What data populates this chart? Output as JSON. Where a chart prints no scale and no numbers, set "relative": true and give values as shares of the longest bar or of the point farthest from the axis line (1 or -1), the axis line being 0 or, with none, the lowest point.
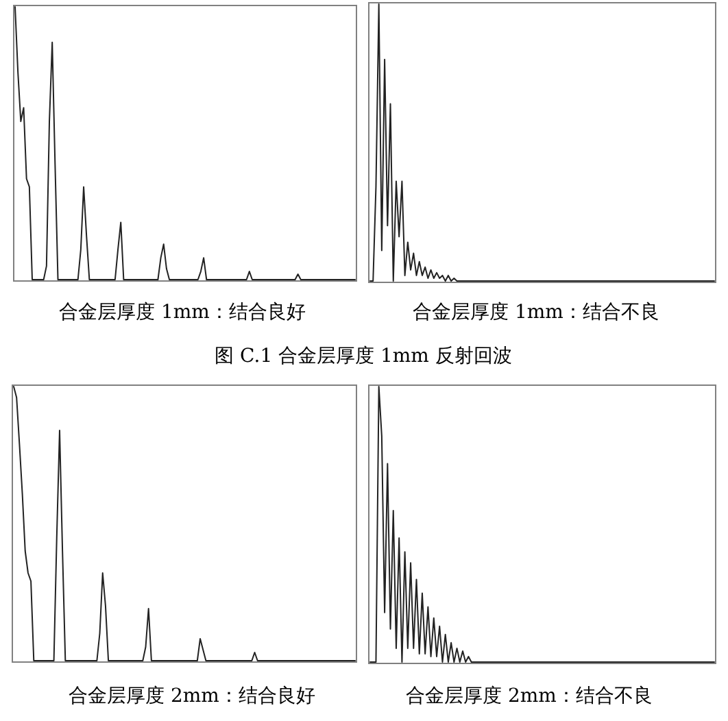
{
  "chart_data": [
    {
      "type": "line",
      "relative": true,
      "xlabel": "合金层厚度 1mm：结合良好",
      "annotations": [
        "图 C.1 合金层厚度 1mm 反射回波"
      ],
      "categories": [
        null,
        null,
        null,
        null,
        null,
        null,
        null,
        null,
        null,
        null,
        null,
        null,
        null,
        null,
        null,
        null,
        null,
        null,
        null,
        null,
        null,
        null,
        null,
        null,
        null,
        null,
        null,
        null,
        null,
        null,
        null,
        null,
        null,
        null,
        null,
        null,
        null,
        null,
        null,
        null,
        null,
        null,
        null,
        null,
        null,
        null,
        null,
        null,
        null,
        null,
        null,
        null,
        null,
        null,
        null,
        null,
        null,
        null,
        null,
        null,
        null,
        null,
        null,
        null,
        null,
        null,
        null,
        null,
        null,
        null,
        null,
        null,
        null,
        null,
        null,
        null,
        null,
        null,
        null,
        null,
        null,
        null,
        null,
        null,
        null,
        null,
        null,
        null,
        null,
        null,
        null,
        null,
        null,
        null,
        null,
        null,
        null,
        null,
        null,
        null,
        null,
        null,
        null,
        null,
        null,
        null,
        null,
        null,
        null,
        null,
        null,
        null,
        null,
        null,
        null,
        null,
        null,
        null,
        null,
        null
      ],
      "series": [
        {
          "color": "#222222",
          "values": [
            1,
            0.76,
            0.58,
            0.63,
            0.37,
            0.34,
            0,
            0,
            0,
            0,
            0,
            0.05,
            0.58,
            0.87,
            0.42,
            0,
            0,
            0,
            0,
            0,
            0,
            0,
            0,
            0.11,
            0.34,
            0.16,
            0,
            0,
            0,
            0,
            0,
            0,
            0,
            0,
            0,
            0,
            0.11,
            0.21,
            0,
            0,
            0,
            0,
            0,
            0,
            0,
            0,
            0,
            0,
            0,
            0,
            0,
            0.08,
            0.13,
            0.04,
            0,
            0,
            0,
            0,
            0,
            0,
            0,
            0,
            0,
            0,
            0,
            0.03,
            0.08,
            0,
            0,
            0,
            0,
            0,
            0,
            0,
            0,
            0,
            0,
            0,
            0,
            0,
            0,
            0,
            0.03,
            0,
            0,
            0,
            0,
            0,
            0,
            0,
            0,
            0,
            0,
            0,
            0,
            0,
            0,
            0,
            0,
            0.02,
            0,
            0,
            0,
            0,
            0,
            0,
            0,
            0,
            0,
            0,
            0,
            0,
            0,
            0,
            0,
            0,
            0,
            0,
            0,
            0
          ]
        }
      ]
    },
    {
      "type": "line",
      "relative": true,
      "xlabel": "合金层厚度 1mm：结合不良",
      "categories": [
        null,
        null,
        null,
        null,
        null,
        null,
        null,
        null,
        null,
        null,
        null,
        null,
        null,
        null,
        null,
        null,
        null,
        null,
        null,
        null,
        null,
        null,
        null,
        null,
        null,
        null,
        null,
        null,
        null,
        null,
        null,
        null,
        null,
        null,
        null,
        null,
        null,
        null,
        null,
        null,
        null,
        null,
        null,
        null,
        null,
        null,
        null,
        null,
        null,
        null,
        null,
        null,
        null,
        null,
        null,
        null,
        null,
        null,
        null,
        null,
        null,
        null,
        null,
        null,
        null,
        null,
        null,
        null,
        null,
        null,
        null,
        null,
        null,
        null,
        null,
        null,
        null,
        null,
        null,
        null,
        null,
        null,
        null,
        null,
        null,
        null,
        null,
        null,
        null,
        null,
        null,
        null,
        null,
        null,
        null,
        null,
        null,
        null,
        null,
        null,
        null,
        null,
        null,
        null,
        null,
        null,
        null,
        null,
        null,
        null,
        null,
        null,
        null,
        null,
        null,
        null,
        null,
        null,
        null,
        null
      ],
      "series": [
        {
          "color": "#222222",
          "values": [
            0,
            0,
            0.34,
            1,
            0.11,
            0.8,
            0.2,
            0.64,
            0,
            0.36,
            0.16,
            0.36,
            0.02,
            0.14,
            0.04,
            0.1,
            0.02,
            0.07,
            0.02,
            0.05,
            0.01,
            0.04,
            0.01,
            0.03,
            0.01,
            0.02,
            0,
            0.02,
            0,
            0.01,
            0,
            0,
            0,
            0,
            0,
            0,
            0,
            0,
            0,
            0,
            0,
            0,
            0,
            0,
            0,
            0,
            0,
            0,
            0,
            0,
            0,
            0,
            0,
            0,
            0,
            0,
            0,
            0,
            0,
            0,
            0,
            0,
            0,
            0,
            0,
            0,
            0,
            0,
            0,
            0,
            0,
            0,
            0,
            0,
            0,
            0,
            0,
            0,
            0,
            0,
            0,
            0,
            0,
            0,
            0,
            0,
            0,
            0,
            0,
            0,
            0,
            0,
            0,
            0,
            0,
            0,
            0,
            0,
            0,
            0,
            0,
            0,
            0,
            0,
            0,
            0,
            0,
            0,
            0,
            0,
            0,
            0,
            0,
            0,
            0,
            0,
            0,
            0,
            0,
            0
          ]
        }
      ]
    },
    {
      "type": "line",
      "relative": true,
      "xlabel": "合金层厚度 2mm：结合良好",
      "categories": [
        null,
        null,
        null,
        null,
        null,
        null,
        null,
        null,
        null,
        null,
        null,
        null,
        null,
        null,
        null,
        null,
        null,
        null,
        null,
        null,
        null,
        null,
        null,
        null,
        null,
        null,
        null,
        null,
        null,
        null,
        null,
        null,
        null,
        null,
        null,
        null,
        null,
        null,
        null,
        null,
        null,
        null,
        null,
        null,
        null,
        null,
        null,
        null,
        null,
        null,
        null,
        null,
        null,
        null,
        null,
        null,
        null,
        null,
        null,
        null,
        null,
        null,
        null,
        null,
        null,
        null,
        null,
        null,
        null,
        null,
        null,
        null,
        null,
        null,
        null,
        null,
        null,
        null,
        null,
        null,
        null,
        null,
        null,
        null,
        null,
        null,
        null,
        null,
        null,
        null,
        null,
        null,
        null,
        null,
        null,
        null,
        null,
        null,
        null,
        null,
        null,
        null,
        null,
        null,
        null,
        null,
        null,
        null,
        null,
        null,
        null,
        null,
        null,
        null,
        null,
        null,
        null,
        null,
        null,
        null
      ],
      "series": [
        {
          "color": "#222222",
          "values": [
            1,
            0.96,
            0.79,
            0.61,
            0.4,
            0.32,
            0.29,
            0,
            0,
            0,
            0,
            0,
            0,
            0,
            0,
            0.45,
            0.84,
            0.4,
            0,
            0,
            0,
            0,
            0,
            0,
            0,
            0,
            0,
            0,
            0,
            0,
            0.1,
            0.32,
            0.2,
            0,
            0,
            0,
            0,
            0,
            0,
            0,
            0,
            0,
            0,
            0,
            0,
            0,
            0.05,
            0.19,
            0,
            0,
            0,
            0,
            0,
            0,
            0,
            0,
            0,
            0,
            0,
            0,
            0,
            0,
            0,
            0,
            0,
            0.08,
            0.04,
            0,
            0,
            0,
            0,
            0,
            0,
            0,
            0,
            0,
            0,
            0,
            0,
            0,
            0,
            0,
            0,
            0,
            0.03,
            0,
            0,
            0,
            0,
            0,
            0,
            0,
            0,
            0,
            0,
            0,
            0,
            0,
            0,
            0,
            0,
            0,
            0,
            0,
            0,
            0,
            0,
            0,
            0,
            0,
            0,
            0,
            0,
            0,
            0,
            0,
            0,
            0,
            0,
            0
          ]
        }
      ]
    },
    {
      "type": "line",
      "relative": true,
      "xlabel": "合金层厚度 2mm：结合不良",
      "categories": [
        null,
        null,
        null,
        null,
        null,
        null,
        null,
        null,
        null,
        null,
        null,
        null,
        null,
        null,
        null,
        null,
        null,
        null,
        null,
        null,
        null,
        null,
        null,
        null,
        null,
        null,
        null,
        null,
        null,
        null,
        null,
        null,
        null,
        null,
        null,
        null,
        null,
        null,
        null,
        null,
        null,
        null,
        null,
        null,
        null,
        null,
        null,
        null,
        null,
        null,
        null,
        null,
        null,
        null,
        null,
        null,
        null,
        null,
        null,
        null,
        null,
        null,
        null,
        null,
        null,
        null,
        null,
        null,
        null,
        null,
        null,
        null,
        null,
        null,
        null,
        null,
        null,
        null,
        null,
        null,
        null,
        null,
        null,
        null,
        null,
        null,
        null,
        null,
        null,
        null,
        null,
        null,
        null,
        null,
        null,
        null,
        null,
        null,
        null,
        null,
        null,
        null,
        null,
        null,
        null,
        null,
        null,
        null,
        null,
        null,
        null,
        null,
        null,
        null,
        null,
        null,
        null,
        null,
        null,
        null
      ],
      "series": [
        {
          "color": "#222222",
          "values": [
            0,
            0,
            0,
            1,
            0.82,
            0.18,
            0.72,
            0.12,
            0.55,
            0.05,
            0.45,
            0,
            0.4,
            0.05,
            0.36,
            0.05,
            0.3,
            0.03,
            0.25,
            0.03,
            0.2,
            0.02,
            0.16,
            0.02,
            0.13,
            0,
            0.1,
            0,
            0.07,
            0,
            0.05,
            0,
            0.04,
            0,
            0.02,
            0,
            0,
            0,
            0,
            0,
            0,
            0,
            0,
            0,
            0,
            0,
            0,
            0,
            0,
            0,
            0,
            0,
            0,
            0,
            0,
            0,
            0,
            0,
            0,
            0,
            0,
            0,
            0,
            0,
            0,
            0,
            0,
            0,
            0,
            0,
            0,
            0,
            0,
            0,
            0,
            0,
            0,
            0,
            0,
            0,
            0,
            0,
            0,
            0,
            0,
            0,
            0,
            0,
            0,
            0,
            0,
            0,
            0,
            0,
            0,
            0,
            0,
            0,
            0,
            0,
            0,
            0,
            0,
            0,
            0,
            0,
            0,
            0,
            0,
            0,
            0,
            0,
            0,
            0,
            0,
            0,
            0,
            0,
            0,
            0
          ]
        }
      ]
    }
  ]
}
